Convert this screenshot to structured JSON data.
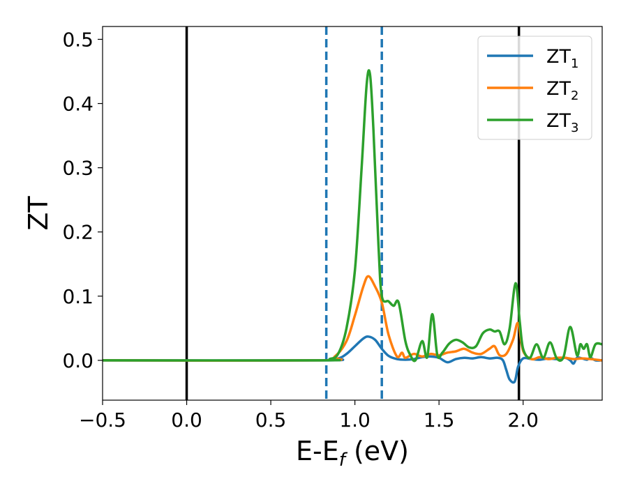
{
  "chart_data": {
    "type": "line",
    "xlabel": "E-E",
    "xlabel_sub": "f",
    "xlabel_unit": " (eV)",
    "ylabel": "ZT",
    "xlim": [
      -0.5,
      2.47
    ],
    "ylim": [
      -0.062,
      0.52
    ],
    "xticks": [
      -0.5,
      0.0,
      0.5,
      1.0,
      1.5,
      2.0
    ],
    "xtick_labels": [
      "−0.5",
      "0.0",
      "0.5",
      "1.0",
      "1.5",
      "2.0"
    ],
    "yticks": [
      0.0,
      0.1,
      0.2,
      0.3,
      0.4,
      0.5
    ],
    "ytick_labels": [
      "0.0",
      "0.1",
      "0.2",
      "0.3",
      "0.4",
      "0.5"
    ],
    "grid": false,
    "legend_position": "top-right",
    "vlines": [
      {
        "x": 0.0,
        "style": "solid",
        "color": "#000000"
      },
      {
        "x": 1.975,
        "style": "solid",
        "color": "#000000"
      },
      {
        "x": 0.83,
        "style": "dashed",
        "color": "#1f77b4"
      },
      {
        "x": 1.16,
        "style": "dashed",
        "color": "#1f77b4"
      }
    ],
    "series": [
      {
        "name": "ZT",
        "name_sub": "1",
        "color": "#1f77b4",
        "x": [
          -0.5,
          0.8,
          0.9,
          0.95,
          1.0,
          1.05,
          1.08,
          1.12,
          1.16,
          1.2,
          1.25,
          1.3,
          1.35,
          1.4,
          1.45,
          1.5,
          1.55,
          1.6,
          1.65,
          1.7,
          1.75,
          1.8,
          1.85,
          1.88,
          1.9,
          1.92,
          1.95,
          1.97,
          2.0,
          2.05,
          2.1,
          2.15,
          2.2,
          2.25,
          2.28,
          2.3,
          2.32,
          2.35,
          2.38,
          2.4,
          2.43,
          2.47
        ],
        "y": [
          0.0,
          0.0,
          0.003,
          0.01,
          0.022,
          0.034,
          0.037,
          0.032,
          0.018,
          0.007,
          0.002,
          0.001,
          0.002,
          0.005,
          0.006,
          0.004,
          -0.003,
          0.002,
          0.004,
          0.003,
          0.005,
          0.003,
          0.004,
          0.0,
          -0.015,
          -0.03,
          -0.033,
          -0.01,
          0.003,
          0.002,
          0.001,
          0.003,
          0.002,
          0.004,
          0.0,
          -0.005,
          0.004,
          0.003,
          0.001,
          0.004,
          0.0,
          0.0
        ]
      },
      {
        "name": "ZT",
        "name_sub": "2",
        "color": "#ff7f0e",
        "x": [
          -0.5,
          0.8,
          0.88,
          0.95,
          1.0,
          1.05,
          1.08,
          1.12,
          1.16,
          1.2,
          1.25,
          1.28,
          1.3,
          1.35,
          1.4,
          1.45,
          1.5,
          1.55,
          1.6,
          1.65,
          1.7,
          1.75,
          1.8,
          1.83,
          1.86,
          1.9,
          1.94,
          1.97,
          2.0,
          2.05,
          2.1,
          2.15,
          2.2,
          2.25,
          2.3,
          2.35,
          2.4,
          2.47
        ],
        "y": [
          0.0,
          0.0,
          0.006,
          0.03,
          0.07,
          0.115,
          0.131,
          0.115,
          0.09,
          0.04,
          0.006,
          0.012,
          0.004,
          0.01,
          0.006,
          0.01,
          0.008,
          0.012,
          0.014,
          0.018,
          0.012,
          0.01,
          0.018,
          0.022,
          0.008,
          0.01,
          0.032,
          0.058,
          0.015,
          0.002,
          0.005,
          0.002,
          0.004,
          0.004,
          0.002,
          0.003,
          0.002,
          0.0
        ]
      },
      {
        "name": "ZT",
        "name_sub": "3",
        "color": "#2ca02c",
        "x": [
          -0.5,
          0.8,
          0.85,
          0.9,
          0.95,
          1.0,
          1.04,
          1.07,
          1.09,
          1.11,
          1.14,
          1.16,
          1.2,
          1.23,
          1.26,
          1.3,
          1.33,
          1.36,
          1.4,
          1.43,
          1.46,
          1.49,
          1.52,
          1.56,
          1.6,
          1.64,
          1.68,
          1.72,
          1.76,
          1.8,
          1.83,
          1.86,
          1.89,
          1.92,
          1.955,
          1.98,
          2.0,
          2.04,
          2.08,
          2.12,
          2.16,
          2.2,
          2.24,
          2.28,
          2.32,
          2.34,
          2.36,
          2.38,
          2.4,
          2.43,
          2.47
        ],
        "y": [
          0.0,
          0.0,
          0.002,
          0.01,
          0.05,
          0.14,
          0.3,
          0.43,
          0.445,
          0.36,
          0.18,
          0.1,
          0.092,
          0.085,
          0.09,
          0.03,
          0.008,
          0.0,
          0.03,
          0.005,
          0.072,
          0.008,
          0.012,
          0.026,
          0.032,
          0.028,
          0.02,
          0.022,
          0.042,
          0.048,
          0.045,
          0.045,
          0.025,
          0.05,
          0.12,
          0.06,
          0.018,
          0.004,
          0.025,
          0.004,
          0.028,
          0.003,
          0.005,
          0.052,
          0.008,
          0.025,
          0.018,
          0.025,
          0.005,
          0.025,
          0.025
        ]
      }
    ]
  }
}
